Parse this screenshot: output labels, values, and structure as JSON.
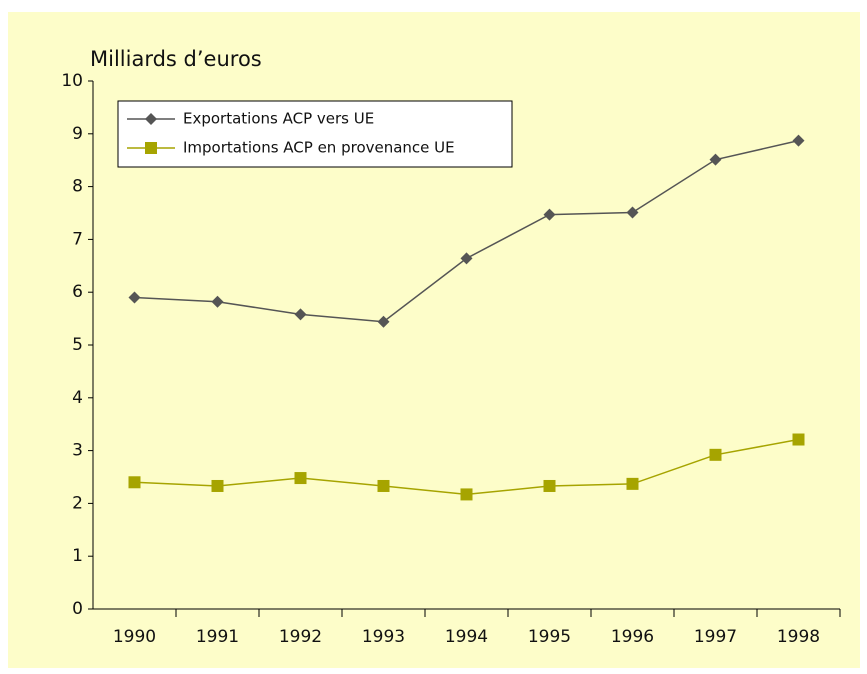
{
  "chart_data": {
    "type": "line",
    "y_label": "Milliards d’euros",
    "categories": [
      "1990",
      "1991",
      "1992",
      "1993",
      "1994",
      "1995",
      "1996",
      "1997",
      "1998"
    ],
    "series": [
      {
        "name": "Exportations ACP vers UE",
        "color": "#555555",
        "marker": "diamond",
        "values": [
          5.9,
          5.82,
          5.58,
          5.44,
          6.64,
          7.47,
          7.51,
          8.51,
          8.87
        ]
      },
      {
        "name": "Importations ACP en provenance UE",
        "color": "#a6a400",
        "marker": "square",
        "values": [
          2.4,
          2.33,
          2.48,
          2.33,
          2.17,
          2.33,
          2.37,
          2.92,
          3.21
        ]
      }
    ],
    "ylim": [
      0,
      10
    ],
    "yticks": [
      0,
      1,
      2,
      3,
      4,
      5,
      6,
      7,
      8,
      9,
      10
    ],
    "grid": false,
    "legend": "upper left"
  }
}
